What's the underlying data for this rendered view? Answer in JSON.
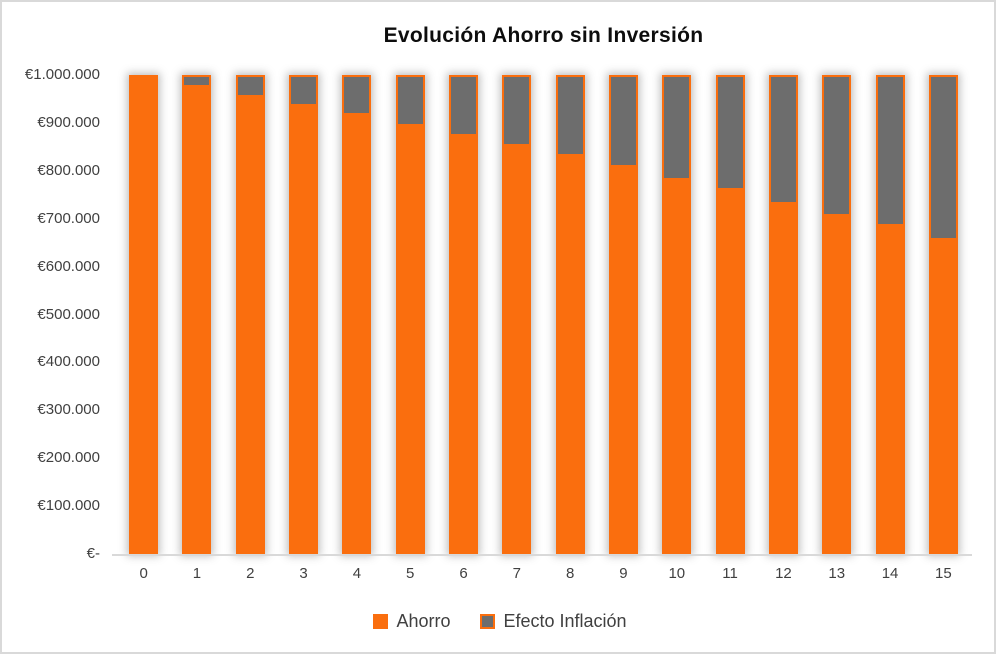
{
  "chart_data": {
    "type": "bar",
    "stacked": true,
    "title": "Evolución Ahorro sin Inversión",
    "categories": [
      "0",
      "1",
      "2",
      "3",
      "4",
      "5",
      "6",
      "7",
      "8",
      "9",
      "10",
      "11",
      "12",
      "13",
      "14",
      "15"
    ],
    "series": [
      {
        "name": "Ahorro",
        "color": "#fa6e0e",
        "values": [
          1000000,
          975000,
          955000,
          936000,
          916000,
          894000,
          873000,
          852000,
          831000,
          807000,
          781000,
          759000,
          731000,
          706000,
          684000,
          655000
        ]
      },
      {
        "name": "Efecto Inflación",
        "color": "#6d6d6d",
        "border_color": "#fa6e0e",
        "values": [
          0,
          25000,
          45000,
          64000,
          84000,
          106000,
          127000,
          148000,
          169000,
          193000,
          219000,
          241000,
          269000,
          294000,
          316000,
          345000
        ]
      }
    ],
    "stack_total": 1000000,
    "ylim": [
      0,
      1000000
    ],
    "y_ticks_bottom_to_top": [
      "€-",
      "€100.000",
      "€200.000",
      "€300.000",
      "€400.000",
      "€500.000",
      "€600.000",
      "€700.000",
      "€800.000",
      "€900.000",
      "€1.000.000"
    ],
    "xlabel": "",
    "ylabel": "",
    "grid": false,
    "legend_position": "bottom",
    "background_color": "#ffffff",
    "frame_border_color": "#d9d9d9",
    "axis_line_color": "#d9d9d9",
    "text_color": "#404040",
    "title_color": "#0d0d0d"
  }
}
